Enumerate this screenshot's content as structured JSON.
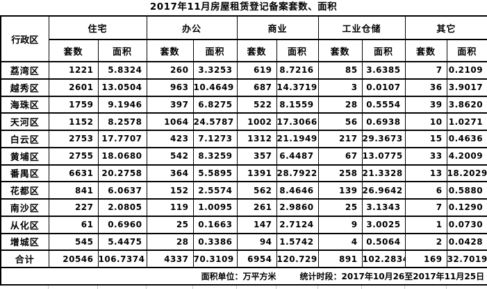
{
  "title": "2017年11月房屋租赁登记备案套数、面积",
  "table": {
    "corner_header": "行政区",
    "group_headers": [
      "住宅",
      "办公",
      "商业",
      "工业仓储",
      "其它"
    ],
    "sub_header_count": "套数",
    "sub_header_area": "面积",
    "rows": [
      {
        "district": "荔湾区",
        "values": [
          "1221",
          "5.8324",
          "260",
          "3.3253",
          "619",
          "8.7216",
          "85",
          "3.6385",
          "7",
          "0.2109"
        ]
      },
      {
        "district": "越秀区",
        "values": [
          "2601",
          "13.0504",
          "963",
          "10.4649",
          "687",
          "14.3719",
          "3",
          "0.0107",
          "36",
          "3.9017"
        ]
      },
      {
        "district": "海珠区",
        "values": [
          "1759",
          "9.1946",
          "397",
          "6.8275",
          "522",
          "8.1559",
          "28",
          "0.5554",
          "39",
          "3.8620"
        ]
      },
      {
        "district": "天河区",
        "values": [
          "1152",
          "8.2578",
          "1064",
          "24.5787",
          "1002",
          "17.3066",
          "56",
          "0.6938",
          "10",
          "1.0271"
        ]
      },
      {
        "district": "白云区",
        "values": [
          "2753",
          "17.7707",
          "423",
          "7.1273",
          "1312",
          "21.1949",
          "217",
          "29.3673",
          "15",
          "0.4636"
        ]
      },
      {
        "district": "黄埔区",
        "values": [
          "2755",
          "18.0680",
          "542",
          "8.3259",
          "357",
          "6.4487",
          "67",
          "13.0775",
          "33",
          "4.2009"
        ]
      },
      {
        "district": "番禺区",
        "values": [
          "6631",
          "20.2758",
          "364",
          "5.5895",
          "1391",
          "28.7922",
          "258",
          "21.3328",
          "13",
          "18.2029"
        ]
      },
      {
        "district": "花都区",
        "values": [
          "841",
          "6.0637",
          "152",
          "2.5574",
          "562",
          "8.4646",
          "139",
          "26.9642",
          "6",
          "0.5880"
        ]
      },
      {
        "district": "南沙区",
        "values": [
          "227",
          "2.0805",
          "119",
          "1.0095",
          "261",
          "2.9860",
          "25",
          "3.1343",
          "7",
          "0.1290"
        ]
      },
      {
        "district": "从化区",
        "values": [
          "61",
          "0.6960",
          "25",
          "0.1663",
          "147",
          "2.7124",
          "9",
          "3.0025",
          "1",
          "0.0730"
        ]
      },
      {
        "district": "增城区",
        "values": [
          "545",
          "5.4475",
          "28",
          "0.3386",
          "94",
          "1.5742",
          "4",
          "0.5064",
          "2",
          "0.0428"
        ]
      },
      {
        "district": "合计",
        "values": [
          "20546",
          "106.7374",
          "4337",
          "70.3109",
          "6954",
          "120.729",
          "891",
          "102.2834",
          "169",
          "32.7019"
        ]
      }
    ]
  },
  "footer": {
    "unit_label": "面积单位：万平方米",
    "period_label": "统计时段：2017年10月26至2017年11月25日"
  },
  "colors": {
    "background": "#ffffff",
    "text": "#000000",
    "border": "#000000",
    "faint_gridline": "#c9c9c9"
  }
}
